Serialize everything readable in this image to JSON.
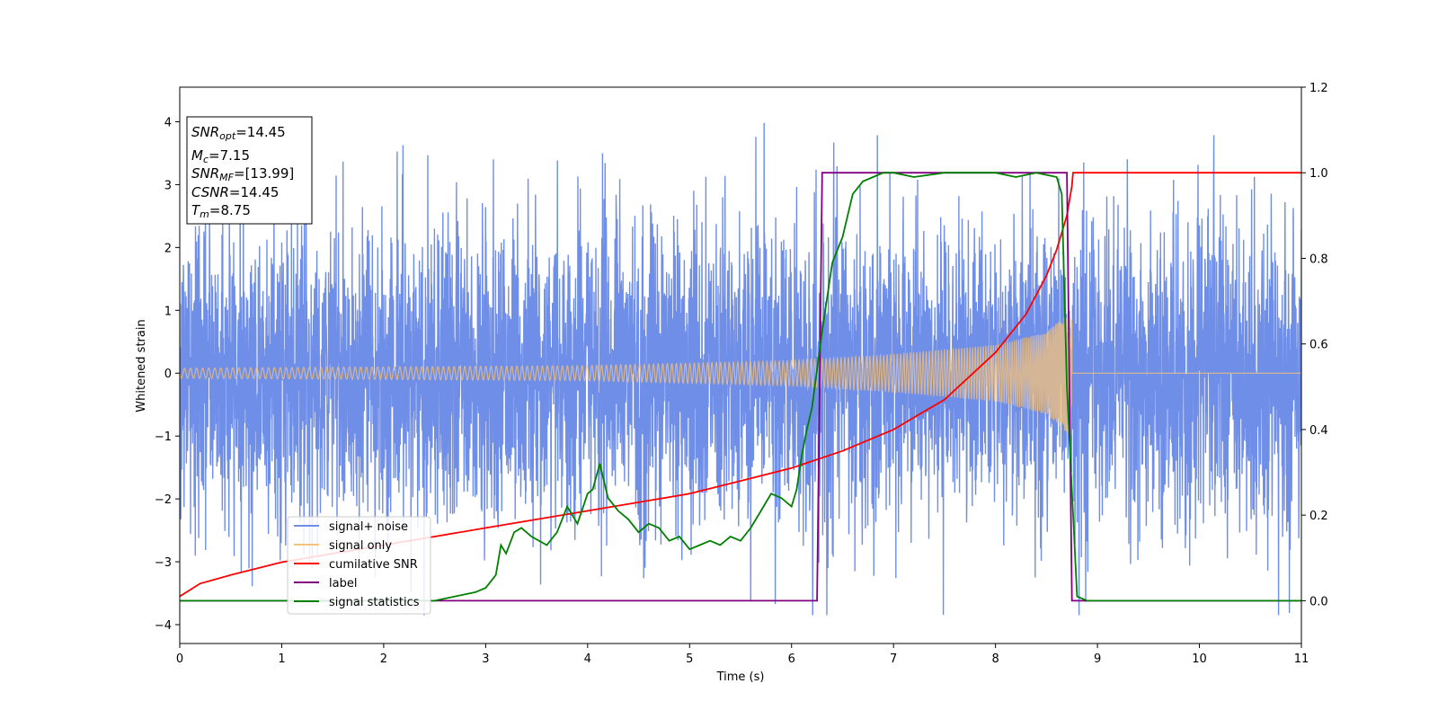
{
  "chart_data": {
    "type": "line",
    "xlabel": "Time (s)",
    "ylabel": "Whitened strain",
    "xlim": [
      0,
      11
    ],
    "ylim": [
      -4.3,
      4.55
    ],
    "y2lim": [
      -0.1,
      1.2
    ],
    "x_ticks": [
      "0",
      "1",
      "2",
      "3",
      "4",
      "5",
      "6",
      "7",
      "8",
      "9",
      "10",
      "11"
    ],
    "y_ticks": [
      "−4",
      "−3",
      "−2",
      "−1",
      "0",
      "1",
      "2",
      "3",
      "4"
    ],
    "y2_ticks": [
      "0.0",
      "0.2",
      "0.4",
      "0.6",
      "0.8",
      "1.0",
      "1.2"
    ],
    "grid": false,
    "legend_position": "lower-left",
    "colors": {
      "signal_noise": "#6f8ee8",
      "signal_only": "#f5c27a",
      "cumulative_snr": "#ff0000",
      "label": "#800080",
      "signal_statistics": "#008000"
    },
    "annotation": {
      "snr_opt": {
        "main": "SNR",
        "sub": "opt",
        "value": "=14.45"
      },
      "mc": {
        "main": "M",
        "sub": "c",
        "value": "=7.15"
      },
      "snr_mf": {
        "main": "SNR",
        "sub": "MF",
        "value": "=[13.99]"
      },
      "csnr": {
        "main": "CSNR",
        "value": "=14.45"
      },
      "tm": {
        "main": "T",
        "sub": "m",
        "value": "=8.75"
      }
    },
    "series": [
      {
        "name": "signal+ noise",
        "axis": "left",
        "description": "whitened noise plus signal, approx. gaussian with sigma ~1.2 over 0-11 s",
        "noise_sigma": 1.2
      },
      {
        "name": "signal only",
        "axis": "left",
        "description": "chirp signal, amplitude grows until merger at 8.75 s then zero",
        "amplitude_points": [
          [
            0,
            0.08
          ],
          [
            2,
            0.1
          ],
          [
            4,
            0.12
          ],
          [
            6,
            0.2
          ],
          [
            7,
            0.3
          ],
          [
            8,
            0.45
          ],
          [
            8.5,
            0.65
          ],
          [
            8.7,
            0.95
          ],
          [
            8.75,
            1.0
          ]
        ],
        "merger_time": 8.75
      },
      {
        "name": "cumilative SNR",
        "axis": "right",
        "x": [
          0,
          0.2,
          0.5,
          1,
          1.5,
          2,
          2.5,
          3,
          3.5,
          4,
          4.5,
          5,
          5.5,
          6,
          6.5,
          7,
          7.5,
          8,
          8.3,
          8.5,
          8.6,
          8.7,
          8.75,
          8.76,
          11
        ],
        "y": [
          0.01,
          0.04,
          0.06,
          0.09,
          0.11,
          0.13,
          0.15,
          0.17,
          0.19,
          0.21,
          0.23,
          0.25,
          0.28,
          0.31,
          0.35,
          0.4,
          0.47,
          0.58,
          0.67,
          0.76,
          0.82,
          0.9,
          0.97,
          1.0,
          1.0
        ]
      },
      {
        "name": "label",
        "axis": "right",
        "x": [
          0,
          6.25,
          6.3,
          8.7,
          8.75,
          11
        ],
        "y": [
          0,
          0,
          1,
          1,
          0,
          0
        ]
      },
      {
        "name": "signal statistics",
        "axis": "right",
        "x": [
          0,
          1,
          2,
          2.5,
          2.7,
          2.9,
          3.0,
          3.1,
          3.15,
          3.2,
          3.28,
          3.35,
          3.45,
          3.6,
          3.7,
          3.8,
          3.9,
          4.0,
          4.05,
          4.12,
          4.2,
          4.3,
          4.4,
          4.5,
          4.6,
          4.7,
          4.8,
          4.9,
          5.0,
          5.1,
          5.2,
          5.3,
          5.4,
          5.5,
          5.6,
          5.7,
          5.8,
          5.9,
          6.0,
          6.05,
          6.1,
          6.15,
          6.2,
          6.3,
          6.4,
          6.5,
          6.6,
          6.7,
          6.8,
          6.9,
          7.0,
          7.2,
          7.5,
          7.8,
          8.0,
          8.2,
          8.4,
          8.6,
          8.65,
          8.7,
          8.8,
          8.9,
          11
        ],
        "y": [
          0,
          0,
          0,
          0.0,
          0.01,
          0.02,
          0.03,
          0.06,
          0.13,
          0.11,
          0.16,
          0.17,
          0.15,
          0.13,
          0.16,
          0.22,
          0.18,
          0.25,
          0.26,
          0.32,
          0.24,
          0.21,
          0.19,
          0.16,
          0.18,
          0.17,
          0.14,
          0.15,
          0.12,
          0.13,
          0.14,
          0.13,
          0.15,
          0.14,
          0.17,
          0.21,
          0.25,
          0.24,
          0.22,
          0.26,
          0.34,
          0.4,
          0.45,
          0.63,
          0.79,
          0.85,
          0.95,
          0.98,
          0.99,
          1.0,
          1.0,
          0.99,
          1.0,
          1.0,
          1.0,
          0.99,
          1.0,
          0.99,
          0.95,
          0.5,
          0.01,
          0.0,
          0.0
        ]
      }
    ]
  }
}
